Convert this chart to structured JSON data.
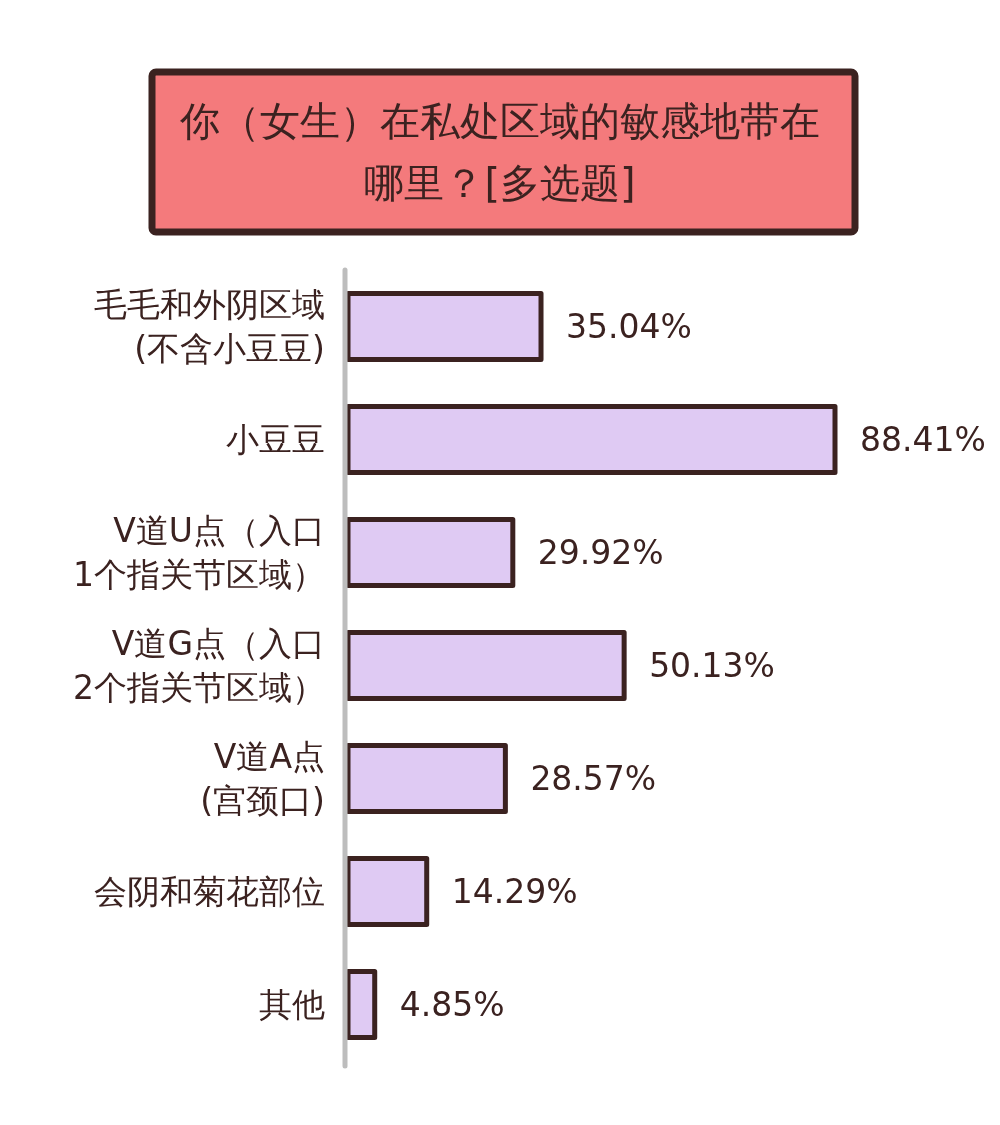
{
  "chart_data": {
    "type": "bar",
    "orientation": "horizontal",
    "title": "你（女生）在私处区域的敏感地带在哪里？[多选题]",
    "categories": [
      "毛毛和外阴区域\n(不含小豆豆)",
      "小豆豆",
      "V道U点（入口\n1个指关节区域）",
      "V道G点（入口\n2个指关节区域）",
      "V道A点\n(宫颈口)",
      "会阴和菊花部位",
      "其他"
    ],
    "values": [
      35.04,
      88.41,
      29.92,
      50.13,
      28.57,
      14.29,
      4.85
    ],
    "value_labels": [
      "35.04%",
      "88.41%",
      "29.92%",
      "50.13%",
      "28.57%",
      "14.29%",
      "4.85%"
    ],
    "color": "#dfcaf3"
  }
}
